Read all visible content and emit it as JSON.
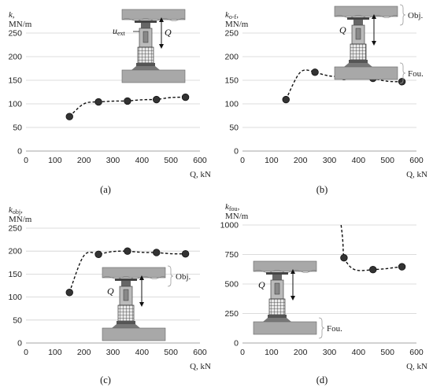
{
  "chart_data": [
    {
      "type": "line",
      "panel_label": "(a)",
      "ylabel_main": "k",
      "ylabel_sub": "",
      "ylabel_unit": "MN/m",
      "xlabel": "Q, kN",
      "xlim": [
        0,
        600
      ],
      "ylim": [
        0,
        250
      ],
      "xticks": [
        0,
        100,
        200,
        300,
        400,
        500,
        600
      ],
      "yticks": [
        0,
        50,
        100,
        150,
        200,
        250
      ],
      "grid": true,
      "x": [
        150,
        250,
        350,
        450,
        550
      ],
      "y": [
        73,
        104,
        106,
        109,
        114
      ],
      "inset": {
        "show_objects": false,
        "show_foundation": false,
        "q_label": "Q",
        "u_label": "u",
        "u_sub": "ext"
      }
    },
    {
      "type": "line",
      "panel_label": "(b)",
      "ylabel_main": "k",
      "ylabel_sub": "o-f",
      "ylabel_unit": "MN/m",
      "xlabel": "Q, kN",
      "xlim": [
        0,
        600
      ],
      "ylim": [
        0,
        250
      ],
      "xticks": [
        0,
        100,
        200,
        300,
        400,
        500,
        600
      ],
      "yticks": [
        0,
        50,
        100,
        150,
        200,
        250
      ],
      "grid": true,
      "x": [
        150,
        250,
        350,
        450,
        550
      ],
      "y": [
        109,
        167,
        158,
        154,
        147
      ],
      "inset": {
        "show_objects": true,
        "show_foundation": true,
        "q_label": "Q",
        "obj_label": "Obj.",
        "fou_label": "Fou."
      }
    },
    {
      "type": "line",
      "panel_label": "(c)",
      "ylabel_main": "k",
      "ylabel_sub": "obj",
      "ylabel_unit": "MN/m",
      "xlabel": "Q, kN",
      "xlim": [
        0,
        600
      ],
      "ylim": [
        0,
        250
      ],
      "xticks": [
        0,
        100,
        200,
        300,
        400,
        500,
        600
      ],
      "yticks": [
        0,
        50,
        100,
        150,
        200,
        250
      ],
      "grid": true,
      "x": [
        150,
        250,
        350,
        450,
        550
      ],
      "y": [
        110,
        193,
        200,
        197,
        194
      ],
      "inset": {
        "show_objects": true,
        "show_foundation": false,
        "q_label": "Q",
        "obj_label": "Obj."
      }
    },
    {
      "type": "line",
      "panel_label": "(d)",
      "ylabel_main": "k",
      "ylabel_sub": "fou",
      "ylabel_unit": "MN/m",
      "xlabel": "Q, kN",
      "xlim": [
        0,
        600
      ],
      "ylim": [
        0,
        1000
      ],
      "xticks": [
        0,
        100,
        200,
        300,
        400,
        500,
        600
      ],
      "yticks": [
        0,
        250,
        500,
        750,
        1000
      ],
      "grid": true,
      "x": [
        350,
        450,
        550
      ],
      "y": [
        722,
        622,
        646
      ],
      "curve_extends_above_ylim": true,
      "inset": {
        "show_objects": false,
        "show_foundation": true,
        "q_label": "Q",
        "fou_label": "Fou."
      }
    }
  ]
}
